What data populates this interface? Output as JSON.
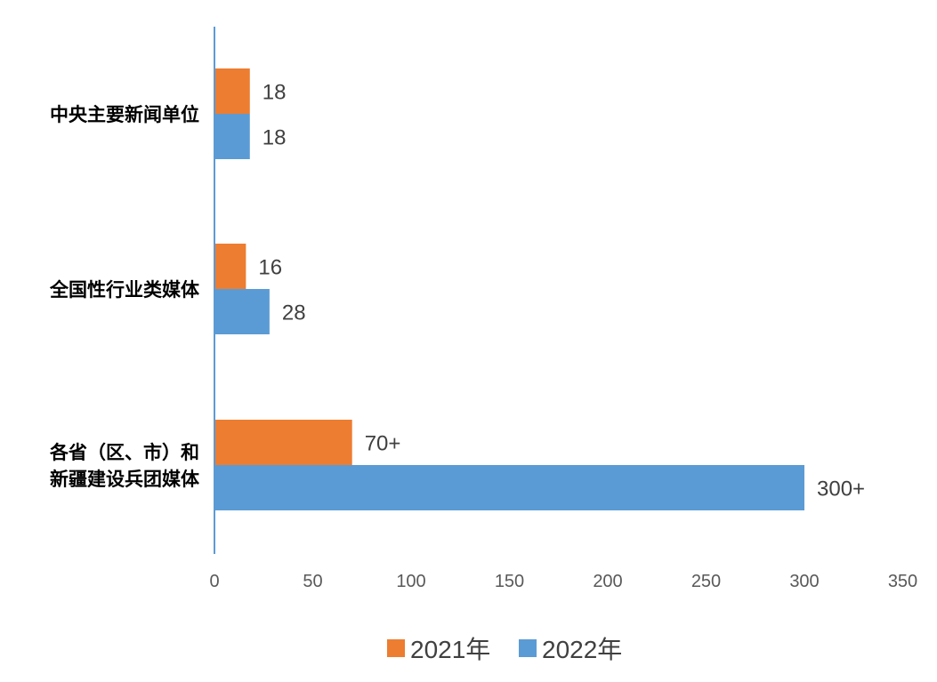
{
  "chart_data": {
    "type": "bar",
    "orientation": "horizontal",
    "categories": [
      [
        "中央主要新闻单位"
      ],
      [
        "全国性行业类媒体"
      ],
      [
        "各省（区、市）和",
        "新疆建设兵团媒体"
      ]
    ],
    "series": [
      {
        "name": "2021年",
        "color": "#ED7D31",
        "values": [
          18,
          16,
          70
        ],
        "labels": [
          "18",
          "16",
          "70+"
        ]
      },
      {
        "name": "2022年",
        "color": "#5B9BD5",
        "values": [
          18,
          28,
          300
        ],
        "labels": [
          "18",
          "28",
          "300+"
        ]
      }
    ],
    "xlim": [
      0,
      350
    ],
    "xticks": [
      0,
      50,
      100,
      150,
      200,
      250,
      300,
      350
    ],
    "grid": false,
    "legend_position": "bottom",
    "axis_color": "#5B9BD5"
  }
}
